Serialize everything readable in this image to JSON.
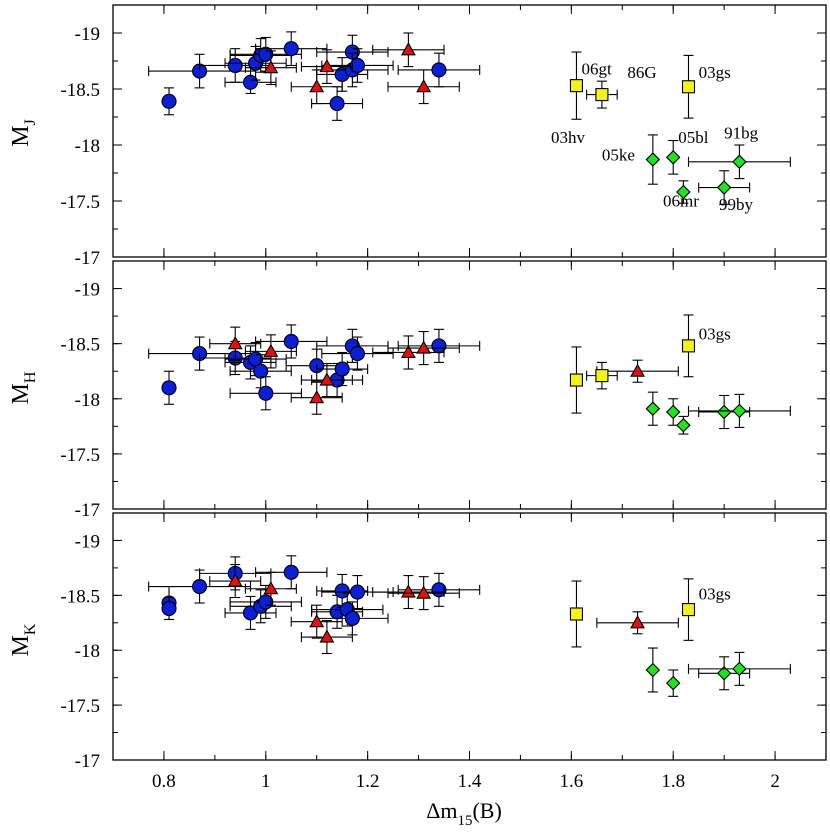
{
  "colors": {
    "circle": "#0a1fd6",
    "triangle": "#e01010",
    "square": "#f3f31a",
    "diamond": "#22e022",
    "outline": "#000000"
  },
  "chart_data": {
    "type": "scatter",
    "xlabel_main": "Δm",
    "xlabel_sub": "15",
    "xlabel_tail": "(B)",
    "xlim": [
      0.7,
      2.1
    ],
    "xticks": [
      0.8,
      1,
      1.2,
      1.4,
      1.6,
      1.8,
      2
    ],
    "xtick_labels": [
      "0.8",
      "1",
      "1.2",
      "1.4",
      "1.6",
      "1.8",
      "2"
    ],
    "panels": [
      {
        "ylabel_main": "M",
        "ylabel_sub": "J",
        "ylim": [
          -19.25,
          -17
        ],
        "yticks": [
          -19,
          -18.5,
          -18,
          -17.5,
          -17
        ],
        "ytick_labels": [
          "-19",
          "-18.5",
          "-18",
          "-17.5",
          "-17"
        ],
        "series": [
          {
            "name": "circle",
            "marker": "circle",
            "points": [
              {
                "x": 0.81,
                "y": -18.39,
                "xerr": 0,
                "yerr": 0.12
              },
              {
                "x": 0.87,
                "y": -18.66,
                "xerr": 0.1,
                "yerr": 0.15
              },
              {
                "x": 0.94,
                "y": -18.71,
                "xerr": 0.07,
                "yerr": 0.15
              },
              {
                "x": 0.97,
                "y": -18.56,
                "xerr": 0.05,
                "yerr": 0.1
              },
              {
                "x": 0.98,
                "y": -18.73,
                "xerr": 0.06,
                "yerr": 0.15
              },
              {
                "x": 0.99,
                "y": -18.8,
                "xerr": 0.06,
                "yerr": 0.15
              },
              {
                "x": 1.0,
                "y": -18.81,
                "xerr": 0.07,
                "yerr": 0.15
              },
              {
                "x": 1.05,
                "y": -18.86,
                "xerr": 0.07,
                "yerr": 0.15
              },
              {
                "x": 1.14,
                "y": -18.37,
                "xerr": 0.05,
                "yerr": 0.15
              },
              {
                "x": 1.15,
                "y": -18.63,
                "xerr": 0.05,
                "yerr": 0.15
              },
              {
                "x": 1.17,
                "y": -18.83,
                "xerr": 0.07,
                "yerr": 0.15
              },
              {
                "x": 1.17,
                "y": -18.67,
                "xerr": 0.07,
                "yerr": 0.15
              },
              {
                "x": 1.18,
                "y": -18.71,
                "xerr": 0.07,
                "yerr": 0.15
              },
              {
                "x": 1.34,
                "y": -18.67,
                "xerr": 0.08,
                "yerr": 0.15
              }
            ]
          },
          {
            "name": "triangle",
            "marker": "triangle",
            "points": [
              {
                "x": 1.01,
                "y": -18.69,
                "xerr": 0.05,
                "yerr": 0.15
              },
              {
                "x": 1.1,
                "y": -18.52,
                "xerr": 0.05,
                "yerr": 0.15
              },
              {
                "x": 1.12,
                "y": -18.7,
                "xerr": 0.05,
                "yerr": 0.15
              },
              {
                "x": 1.28,
                "y": -18.85,
                "xerr": 0.07,
                "yerr": 0.15
              },
              {
                "x": 1.31,
                "y": -18.52,
                "xerr": 0.07,
                "yerr": 0.15
              }
            ]
          },
          {
            "name": "square",
            "marker": "square",
            "points": [
              {
                "x": 1.61,
                "y": -18.53,
                "xerr": 0,
                "yerr": 0.3
              },
              {
                "x": 1.66,
                "y": -18.45,
                "xerr": 0.03,
                "yerr": 0.12
              },
              {
                "x": 1.83,
                "y": -18.52,
                "xerr": 0,
                "yerr": 0.28
              }
            ]
          },
          {
            "name": "diamond",
            "marker": "diamond",
            "points": [
              {
                "x": 1.76,
                "y": -17.87,
                "xerr": 0,
                "yerr": 0.22
              },
              {
                "x": 1.8,
                "y": -17.89,
                "xerr": 0,
                "yerr": 0.15
              },
              {
                "x": 1.82,
                "y": -17.58,
                "xerr": 0,
                "yerr": 0.1
              },
              {
                "x": 1.9,
                "y": -17.62,
                "xerr": 0.05,
                "yerr": 0.15
              },
              {
                "x": 1.93,
                "y": -17.85,
                "xerr": 0.1,
                "yerr": 0.15
              }
            ]
          }
        ],
        "annotations": [
          {
            "text": "06gt",
            "x": 1.62,
            "y": -18.63
          },
          {
            "text": "86G",
            "x": 1.71,
            "y": -18.6
          },
          {
            "text": "03gs",
            "x": 1.85,
            "y": -18.6
          },
          {
            "text": "03hv",
            "x": 1.56,
            "y": -18.02
          },
          {
            "text": "05bl",
            "x": 1.81,
            "y": -18.02
          },
          {
            "text": "91bg",
            "x": 1.9,
            "y": -18.06
          },
          {
            "text": "05ke",
            "x": 1.66,
            "y": -17.86
          },
          {
            "text": "06mr",
            "x": 1.78,
            "y": -17.45
          },
          {
            "text": "99by",
            "x": 1.89,
            "y": -17.42
          }
        ]
      },
      {
        "ylabel_main": "M",
        "ylabel_sub": "H",
        "ylim": [
          -19.25,
          -17
        ],
        "yticks": [
          -19,
          -18.5,
          -18,
          -17.5,
          -17
        ],
        "ytick_labels": [
          "-19",
          "-18.5",
          "-18",
          "-17.5",
          "-17"
        ],
        "series": [
          {
            "name": "circle",
            "marker": "circle",
            "points": [
              {
                "x": 0.81,
                "y": -18.1,
                "xerr": 0,
                "yerr": 0.15
              },
              {
                "x": 0.87,
                "y": -18.41,
                "xerr": 0.1,
                "yerr": 0.15
              },
              {
                "x": 0.94,
                "y": -18.37,
                "xerr": 0.07,
                "yerr": 0.15
              },
              {
                "x": 0.97,
                "y": -18.33,
                "xerr": 0.05,
                "yerr": 0.15
              },
              {
                "x": 0.98,
                "y": -18.36,
                "xerr": 0.06,
                "yerr": 0.15
              },
              {
                "x": 0.99,
                "y": -18.25,
                "xerr": 0.06,
                "yerr": 0.15
              },
              {
                "x": 1.0,
                "y": -18.05,
                "xerr": 0.07,
                "yerr": 0.15
              },
              {
                "x": 1.05,
                "y": -18.52,
                "xerr": 0.07,
                "yerr": 0.15
              },
              {
                "x": 1.1,
                "y": -18.3,
                "xerr": 0.06,
                "yerr": 0.15
              },
              {
                "x": 1.14,
                "y": -18.17,
                "xerr": 0.05,
                "yerr": 0.15
              },
              {
                "x": 1.15,
                "y": -18.27,
                "xerr": 0.05,
                "yerr": 0.15
              },
              {
                "x": 1.17,
                "y": -18.48,
                "xerr": 0.07,
                "yerr": 0.15
              },
              {
                "x": 1.18,
                "y": -18.41,
                "xerr": 0.07,
                "yerr": 0.15
              },
              {
                "x": 1.34,
                "y": -18.48,
                "xerr": 0.08,
                "yerr": 0.15
              }
            ]
          },
          {
            "name": "triangle",
            "marker": "triangle",
            "points": [
              {
                "x": 0.94,
                "y": -18.5,
                "xerr": 0.05,
                "yerr": 0.15
              },
              {
                "x": 1.01,
                "y": -18.43,
                "xerr": 0.05,
                "yerr": 0.15
              },
              {
                "x": 1.1,
                "y": -18.01,
                "xerr": 0.05,
                "yerr": 0.15
              },
              {
                "x": 1.12,
                "y": -18.17,
                "xerr": 0.05,
                "yerr": 0.15
              },
              {
                "x": 1.28,
                "y": -18.42,
                "xerr": 0.07,
                "yerr": 0.15
              },
              {
                "x": 1.31,
                "y": -18.46,
                "xerr": 0.07,
                "yerr": 0.15
              },
              {
                "x": 1.73,
                "y": -18.25,
                "xerr": 0.08,
                "yerr": 0.1
              }
            ]
          },
          {
            "name": "square",
            "marker": "square",
            "points": [
              {
                "x": 1.61,
                "y": -18.17,
                "xerr": 0,
                "yerr": 0.3
              },
              {
                "x": 1.66,
                "y": -18.21,
                "xerr": 0.03,
                "yerr": 0.12
              },
              {
                "x": 1.83,
                "y": -18.48,
                "xerr": 0,
                "yerr": 0.28
              }
            ]
          },
          {
            "name": "diamond",
            "marker": "diamond",
            "points": [
              {
                "x": 1.76,
                "y": -17.91,
                "xerr": 0,
                "yerr": 0.15
              },
              {
                "x": 1.8,
                "y": -17.88,
                "xerr": 0,
                "yerr": 0.12
              },
              {
                "x": 1.82,
                "y": -17.76,
                "xerr": 0,
                "yerr": 0.08
              },
              {
                "x": 1.9,
                "y": -17.88,
                "xerr": 0.05,
                "yerr": 0.15
              },
              {
                "x": 1.93,
                "y": -17.89,
                "xerr": 0.1,
                "yerr": 0.15
              }
            ]
          }
        ],
        "annotations": [
          {
            "text": "03gs",
            "x": 1.85,
            "y": -18.54
          }
        ]
      },
      {
        "ylabel_main": "M",
        "ylabel_sub": "K",
        "ylim": [
          -19.25,
          -17
        ],
        "yticks": [
          -19,
          -18.5,
          -18,
          -17.5,
          -17
        ],
        "ytick_labels": [
          "-19",
          "-18.5",
          "-18",
          "-17.5",
          "-17"
        ],
        "series": [
          {
            "name": "circle",
            "marker": "circle",
            "points": [
              {
                "x": 0.81,
                "y": -18.43,
                "xerr": 0,
                "yerr": 0.15
              },
              {
                "x": 0.81,
                "y": -18.38,
                "xerr": 0,
                "yerr": 0.1
              },
              {
                "x": 0.87,
                "y": -18.58,
                "xerr": 0.1,
                "yerr": 0.15
              },
              {
                "x": 0.94,
                "y": -18.7,
                "xerr": 0.07,
                "yerr": 0.15
              },
              {
                "x": 0.97,
                "y": -18.34,
                "xerr": 0.05,
                "yerr": 0.15
              },
              {
                "x": 0.99,
                "y": -18.4,
                "xerr": 0.06,
                "yerr": 0.15
              },
              {
                "x": 1.0,
                "y": -18.44,
                "xerr": 0.07,
                "yerr": 0.15
              },
              {
                "x": 1.05,
                "y": -18.71,
                "xerr": 0.07,
                "yerr": 0.15
              },
              {
                "x": 1.14,
                "y": -18.35,
                "xerr": 0.05,
                "yerr": 0.15
              },
              {
                "x": 1.15,
                "y": -18.54,
                "xerr": 0.05,
                "yerr": 0.15
              },
              {
                "x": 1.16,
                "y": -18.37,
                "xerr": 0.07,
                "yerr": 0.15
              },
              {
                "x": 1.17,
                "y": -18.29,
                "xerr": 0.07,
                "yerr": 0.15
              },
              {
                "x": 1.18,
                "y": -18.53,
                "xerr": 0.07,
                "yerr": 0.15
              },
              {
                "x": 1.34,
                "y": -18.55,
                "xerr": 0.08,
                "yerr": 0.15
              }
            ]
          },
          {
            "name": "triangle",
            "marker": "triangle",
            "points": [
              {
                "x": 0.94,
                "y": -18.63,
                "xerr": 0.05,
                "yerr": 0.15
              },
              {
                "x": 1.01,
                "y": -18.56,
                "xerr": 0.05,
                "yerr": 0.15
              },
              {
                "x": 1.1,
                "y": -18.26,
                "xerr": 0.05,
                "yerr": 0.15
              },
              {
                "x": 1.12,
                "y": -18.12,
                "xerr": 0.05,
                "yerr": 0.15
              },
              {
                "x": 1.28,
                "y": -18.53,
                "xerr": 0.07,
                "yerr": 0.15
              },
              {
                "x": 1.31,
                "y": -18.52,
                "xerr": 0.07,
                "yerr": 0.15
              },
              {
                "x": 1.73,
                "y": -18.25,
                "xerr": 0.08,
                "yerr": 0.1
              }
            ]
          },
          {
            "name": "square",
            "marker": "square",
            "points": [
              {
                "x": 1.61,
                "y": -18.33,
                "xerr": 0,
                "yerr": 0.3
              },
              {
                "x": 1.83,
                "y": -18.37,
                "xerr": 0,
                "yerr": 0.28
              }
            ]
          },
          {
            "name": "diamond",
            "marker": "diamond",
            "points": [
              {
                "x": 1.76,
                "y": -17.82,
                "xerr": 0,
                "yerr": 0.2
              },
              {
                "x": 1.8,
                "y": -17.7,
                "xerr": 0,
                "yerr": 0.12
              },
              {
                "x": 1.9,
                "y": -17.79,
                "xerr": 0.05,
                "yerr": 0.15
              },
              {
                "x": 1.93,
                "y": -17.83,
                "xerr": 0.1,
                "yerr": 0.15
              }
            ]
          }
        ],
        "annotations": [
          {
            "text": "03gs",
            "x": 1.85,
            "y": -18.46
          }
        ]
      }
    ]
  }
}
